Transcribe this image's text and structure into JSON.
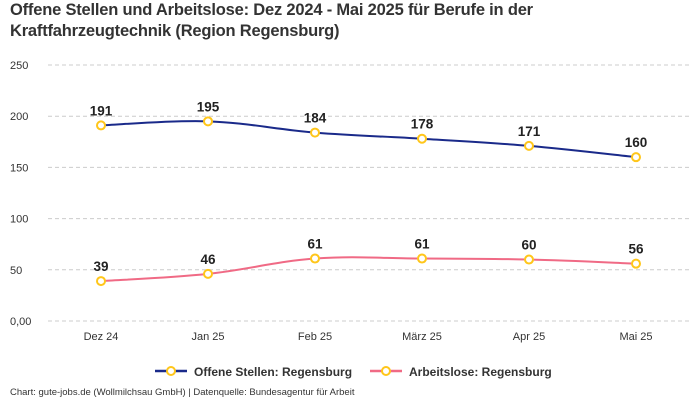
{
  "chart_data": {
    "type": "line",
    "title": "Offene Stellen und Arbeitslose: Dez 2024 - Mai 2025 für Berufe in der Kraftfahrzeugtechnik (Region Regensburg)",
    "categories": [
      "Dez 24",
      "Jan 25",
      "Feb 25",
      "März 25",
      "Apr 25",
      "Mai 25"
    ],
    "yticks": [
      {
        "value": 0,
        "label": "0,00"
      },
      {
        "value": 50,
        "label": "50"
      },
      {
        "value": 100,
        "label": "100"
      },
      {
        "value": 150,
        "label": "150"
      },
      {
        "value": 200,
        "label": "200"
      },
      {
        "value": 250,
        "label": "250"
      }
    ],
    "ylim": [
      0,
      250
    ],
    "grid": true,
    "legend_placement": "bottom-center",
    "series": [
      {
        "name": "Offene Stellen: Regensburg",
        "color": "#1a2a8a",
        "values": [
          191,
          195,
          184,
          178,
          171,
          160
        ]
      },
      {
        "name": "Arbeitslose: Regensburg",
        "color": "#f06a85",
        "values": [
          39,
          46,
          61,
          61,
          60,
          56
        ]
      }
    ],
    "marker_color": "#ffc61a"
  },
  "footer": "Chart: gute-jobs.de (Wollmilchsau GmbH) | Datenquelle: Bundesagentur für Arbeit"
}
